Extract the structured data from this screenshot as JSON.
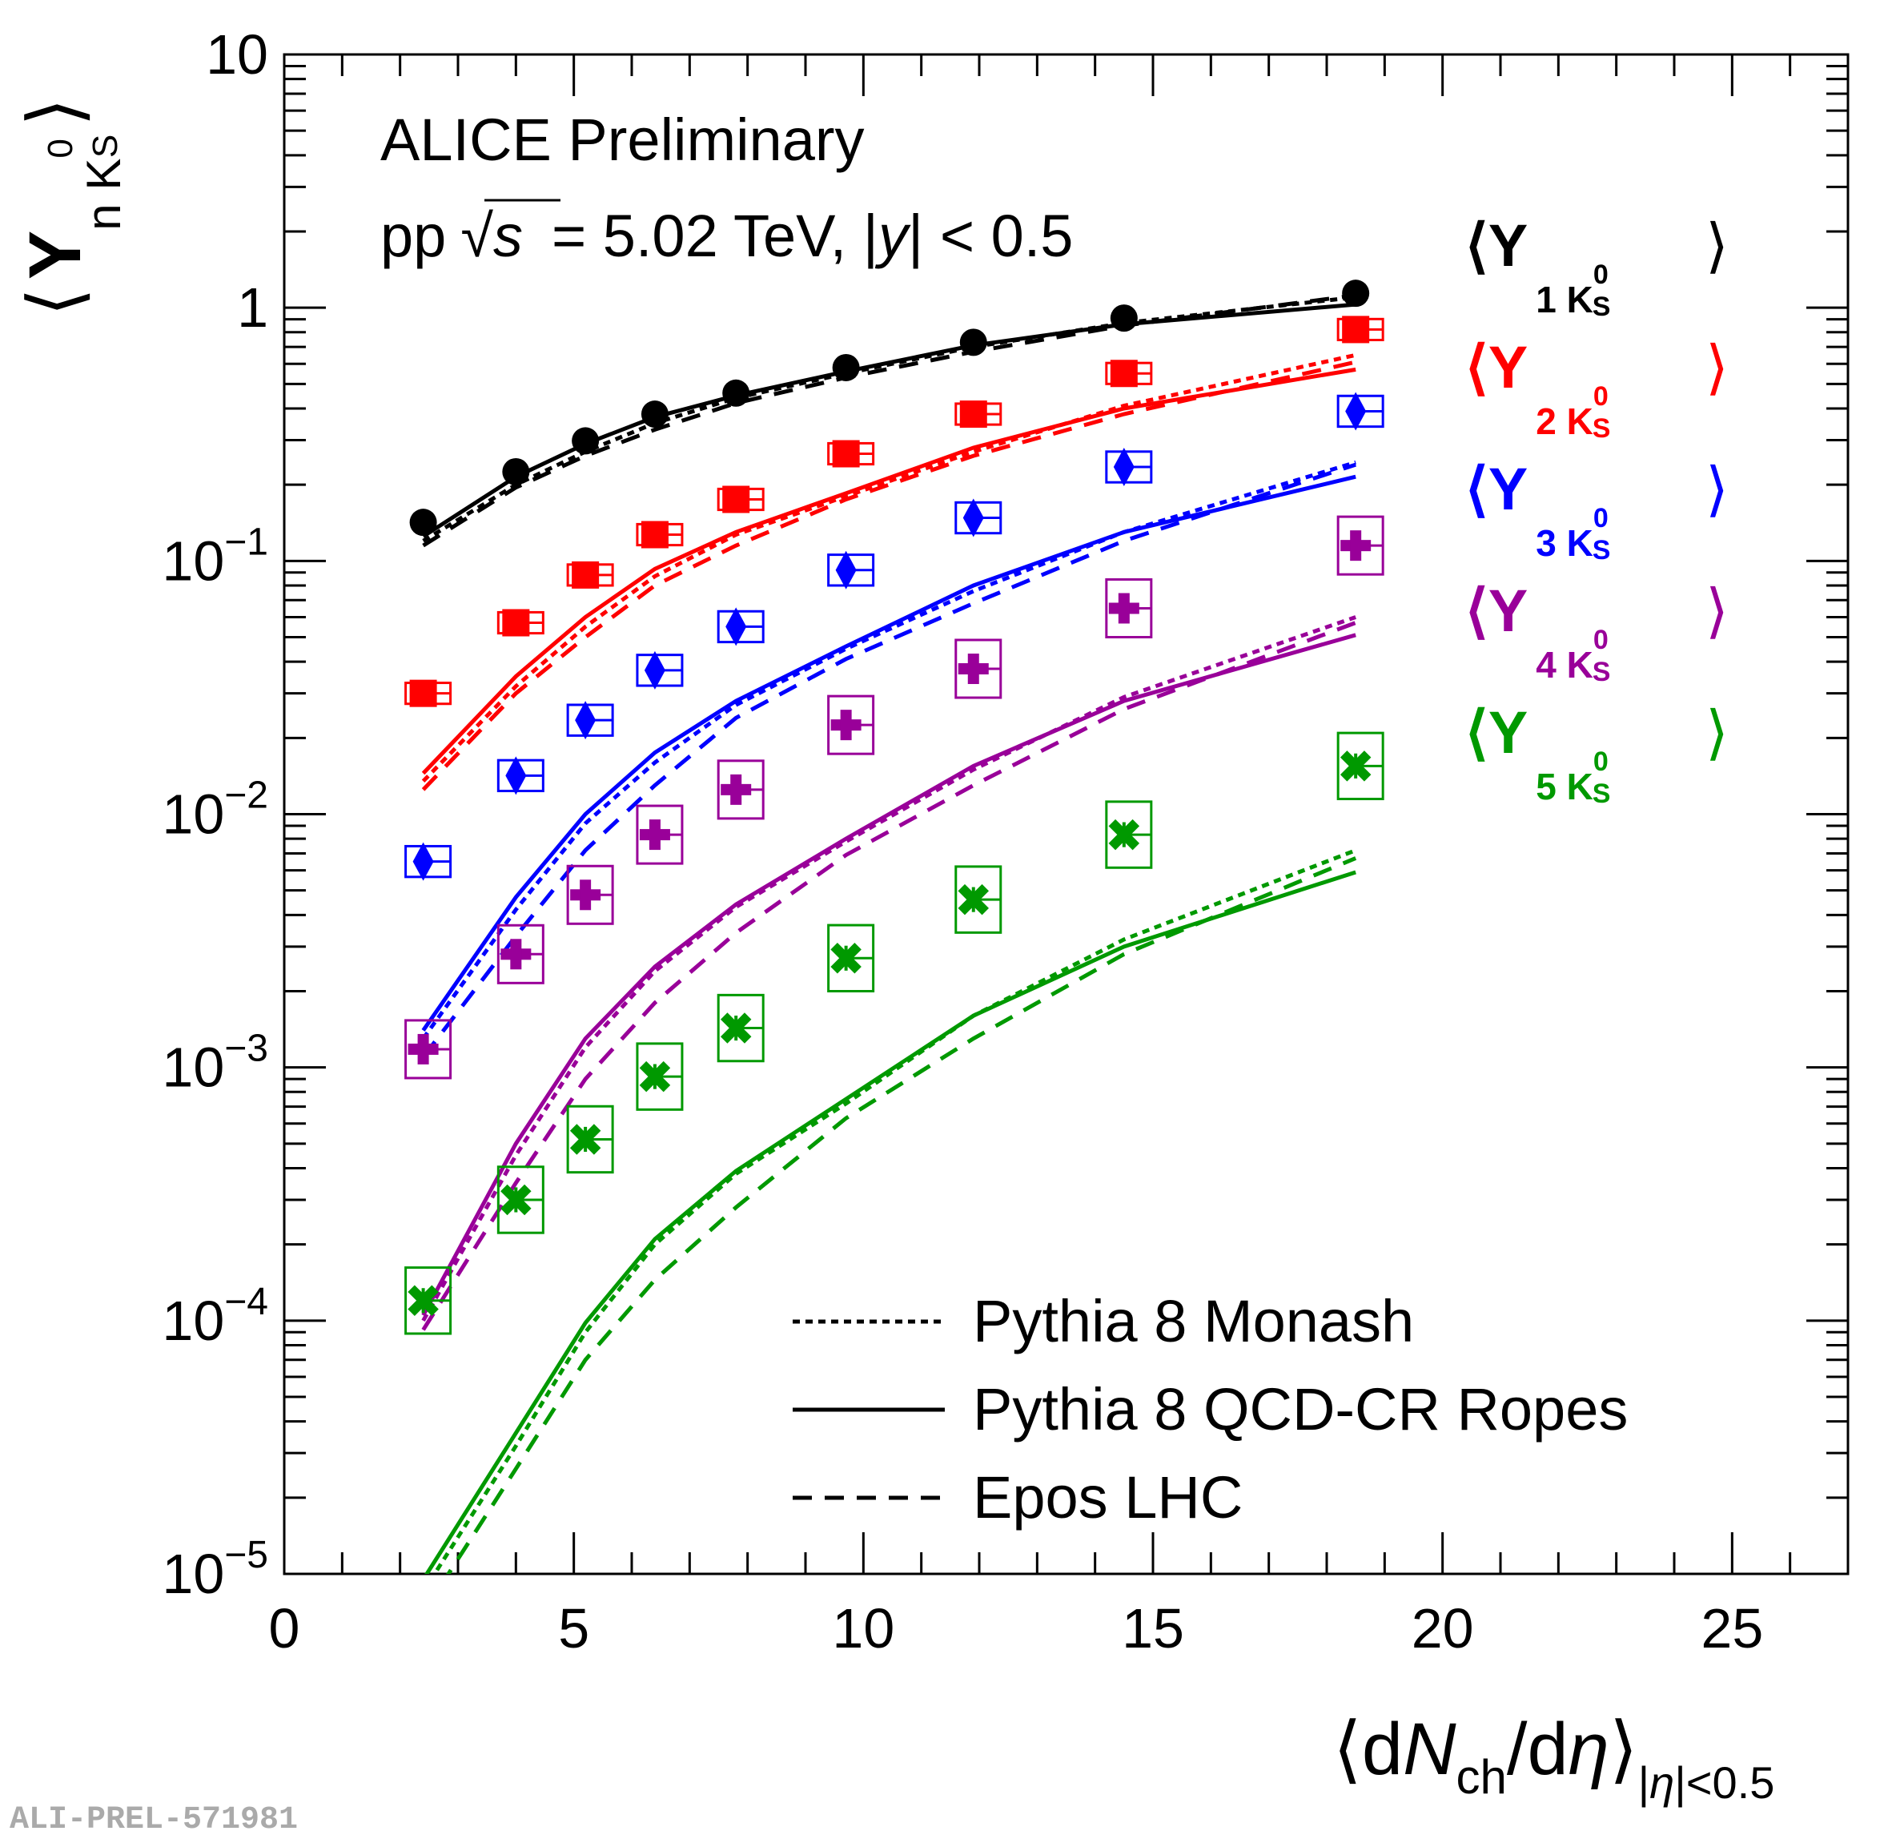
{
  "chart_data": {
    "type": "scatter",
    "title": "ALICE Preliminary",
    "subtitle": {
      "prefix": "pp",
      "sqrt": "s",
      "rest": "= 5.02 TeV, |",
      "yvar": "y",
      "tail": "| < 0.5"
    },
    "preliminary_id": "ALI-PREL-571981",
    "xlabel": {
      "open": "⟨d",
      "N": "N",
      "sub": "ch",
      "slash": "/d",
      "eta": "η",
      "close": "⟩",
      "range_bar1": "|",
      "range_eta": "η",
      "range_rest": "|<0.5"
    },
    "ylabel": {
      "open": "⟨",
      "Y": "Y",
      "sub": "n K",
      "sup": "0",
      "subsub": "S",
      "close": "⟩"
    },
    "xlim": [
      0,
      27
    ],
    "ylim": [
      1e-05,
      10
    ],
    "y_log": true,
    "x_ticks": [
      "0",
      "5",
      "10",
      "15",
      "20",
      "25"
    ],
    "y_ticks": [
      {
        "base": "10",
        "exp": "",
        "plain": "10"
      },
      {
        "base": "1",
        "exp": "",
        "plain": "1"
      },
      {
        "base": "10",
        "exp": "−1",
        "plain": ""
      },
      {
        "base": "10",
        "exp": "−2",
        "plain": ""
      },
      {
        "base": "10",
        "exp": "−3",
        "plain": ""
      },
      {
        "base": "10",
        "exp": "−4",
        "plain": ""
      },
      {
        "base": "10",
        "exp": "−5",
        "plain": ""
      }
    ],
    "x": [
      2.4,
      4.0,
      5.2,
      6.4,
      7.8,
      9.7,
      11.9,
      14.5,
      18.5
    ],
    "series": [
      {
        "name": "⟨Y",
        "sub": "1 K",
        "sup": "0",
        "subsub": "S",
        "close": "⟩",
        "color": "#000000",
        "marker": "circle",
        "values": [
          0.142,
          0.225,
          0.298,
          0.38,
          0.46,
          0.58,
          0.73,
          0.91,
          1.14
        ],
        "syst_rel": 0.08,
        "monash": [
          0.12,
          0.2,
          0.27,
          0.35,
          0.44,
          0.55,
          0.7,
          0.87,
          1.1
        ],
        "ropes": [
          0.125,
          0.215,
          0.29,
          0.37,
          0.45,
          0.56,
          0.71,
          0.86,
          1.03
        ],
        "epos": [
          0.115,
          0.195,
          0.26,
          0.33,
          0.42,
          0.53,
          0.67,
          0.85,
          1.12
        ]
      },
      {
        "name": "⟨Y",
        "sub": "2 K",
        "sup": "0",
        "subsub": "S",
        "close": "⟩",
        "color": "#ff0000",
        "marker": "square",
        "values": [
          0.03,
          0.057,
          0.088,
          0.127,
          0.175,
          0.265,
          0.38,
          0.55,
          0.82
        ],
        "syst_rel": 0.1,
        "monash": [
          0.0135,
          0.032,
          0.055,
          0.087,
          0.127,
          0.18,
          0.27,
          0.41,
          0.65
        ],
        "ropes": [
          0.0145,
          0.035,
          0.06,
          0.093,
          0.13,
          0.185,
          0.28,
          0.4,
          0.57
        ],
        "epos": [
          0.0125,
          0.03,
          0.05,
          0.08,
          0.115,
          0.175,
          0.26,
          0.38,
          0.61
        ]
      },
      {
        "name": "⟨Y",
        "sub": "3 K",
        "sup": "0",
        "subsub": "S",
        "close": "⟩",
        "color": "#0000ff",
        "marker": "diamond",
        "values": [
          0.0065,
          0.0142,
          0.0235,
          0.037,
          0.055,
          0.092,
          0.148,
          0.235,
          0.39
        ],
        "syst_rel": 0.15,
        "monash": [
          0.0013,
          0.0042,
          0.0092,
          0.016,
          0.027,
          0.045,
          0.076,
          0.13,
          0.245
        ],
        "ropes": [
          0.0014,
          0.0047,
          0.01,
          0.0175,
          0.028,
          0.046,
          0.08,
          0.13,
          0.215
        ],
        "epos": [
          0.0011,
          0.0033,
          0.0072,
          0.013,
          0.024,
          0.041,
          0.068,
          0.12,
          0.24
        ]
      },
      {
        "name": "⟨Y",
        "sub": "4 K",
        "sup": "0",
        "subsub": "S",
        "close": "⟩",
        "color": "#990099",
        "marker": "cross",
        "values": [
          0.00118,
          0.0028,
          0.0048,
          0.0083,
          0.0125,
          0.0225,
          0.0375,
          0.065,
          0.115
        ],
        "syst_rel": 0.3,
        "monash": [
          0.0001,
          0.00045,
          0.0012,
          0.0024,
          0.0043,
          0.0078,
          0.015,
          0.029,
          0.06
        ],
        "ropes": [
          0.000105,
          0.0005,
          0.0013,
          0.0025,
          0.0044,
          0.008,
          0.0155,
          0.028,
          0.051
        ],
        "epos": [
          9.2e-05,
          0.00035,
          0.0009,
          0.0018,
          0.0034,
          0.0069,
          0.013,
          0.026,
          0.057
        ]
      },
      {
        "name": "⟨Y",
        "sub": "5 K",
        "sup": "0",
        "subsub": "S",
        "close": "⟩",
        "color": "#009900",
        "marker": "x",
        "values": [
          0.00012,
          0.0003,
          0.00052,
          0.00092,
          0.00143,
          0.0027,
          0.0046,
          0.0083,
          0.0155
        ],
        "syst_rel": 0.35,
        "monash": [
          8.5e-06,
          3.2e-05,
          9e-05,
          0.0002,
          0.00038,
          0.00072,
          0.0016,
          0.0032,
          0.0072
        ],
        "ropes": [
          9.5e-06,
          3.6e-05,
          9.8e-05,
          0.00021,
          0.00039,
          0.00075,
          0.0016,
          0.003,
          0.0059
        ],
        "epos": [
          7e-06,
          2.6e-05,
          7e-05,
          0.000145,
          0.00028,
          0.00063,
          0.0013,
          0.0028,
          0.0067
        ]
      }
    ],
    "model_legend": [
      {
        "label": "Pythia 8 Monash",
        "style": "dotted"
      },
      {
        "label": "Pythia 8 QCD-CR Ropes",
        "style": "solid"
      },
      {
        "label": "Epos LHC",
        "style": "dashed"
      }
    ],
    "legend_position": "right"
  }
}
